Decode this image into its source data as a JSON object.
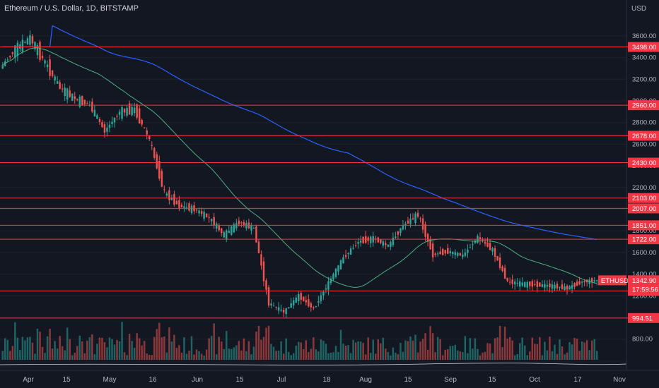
{
  "header": {
    "title": "Ethereum / U.S. Dollar, 1D, BITSTAMP",
    "currency": "USD"
  },
  "colors": {
    "background": "#131722",
    "up": "#26a69a",
    "down": "#ef5350",
    "level": "#f23645",
    "ma_fast": "#4caf80",
    "ma_slow": "#2962ff",
    "text": "#b2b5be"
  },
  "chart_data": {
    "type": "candlestick",
    "symbol": "ETHUSD",
    "y_axis": {
      "min": 600,
      "max": 3700,
      "ticks": [
        "3600.00",
        "3400.00",
        "3200.00",
        "3000.00",
        "2800.00",
        "2600.00",
        "2400.00",
        "2200.00",
        "2000.00",
        "1800.00",
        "1600.00",
        "1400.00",
        "1200.00",
        "1000.00",
        "800.00"
      ],
      "position": "right"
    },
    "x_ticks": [
      "Apr",
      "15",
      "May",
      "16",
      "Jun",
      "15",
      "Jul",
      "18",
      "Aug",
      "15",
      "Sep",
      "15",
      "Oct",
      "17",
      "Nov"
    ],
    "levels": [
      "3498.00",
      "2960.00",
      "2678.00",
      "2430.00",
      "2103.00",
      "2007.00",
      "1851.00",
      "1722.00",
      "1245.08",
      "994.51"
    ],
    "last_price": {
      "label": "ETHUSD",
      "price": "1342.90",
      "countdown": "17:59:56"
    },
    "ohlc_summary": [
      [
        3300,
        3480
      ],
      [
        3480,
        3580
      ],
      [
        3580,
        3350
      ],
      [
        3350,
        3120
      ],
      [
        3120,
        3020
      ],
      [
        3020,
        2960
      ],
      [
        2960,
        2720
      ],
      [
        2720,
        2900
      ],
      [
        2900,
        2920
      ],
      [
        2920,
        2640
      ],
      [
        2640,
        2150
      ],
      [
        2150,
        2030
      ],
      [
        2030,
        2000
      ],
      [
        2000,
        1920
      ],
      [
        1920,
        1760
      ],
      [
        1760,
        1880
      ],
      [
        1880,
        1820
      ],
      [
        1820,
        1130
      ],
      [
        1130,
        1050
      ],
      [
        1050,
        1200
      ],
      [
        1200,
        1080
      ],
      [
        1080,
        1320
      ],
      [
        1320,
        1550
      ],
      [
        1550,
        1700
      ],
      [
        1700,
        1730
      ],
      [
        1730,
        1660
      ],
      [
        1660,
        1850
      ],
      [
        1850,
        1950
      ],
      [
        1950,
        1580
      ],
      [
        1580,
        1610
      ],
      [
        1610,
        1570
      ],
      [
        1570,
        1740
      ],
      [
        1740,
        1620
      ],
      [
        1620,
        1330
      ],
      [
        1330,
        1310
      ],
      [
        1310,
        1300
      ],
      [
        1300,
        1290
      ],
      [
        1290,
        1270
      ],
      [
        1270,
        1330
      ],
      [
        1330,
        1343
      ]
    ],
    "moving_averages": [
      {
        "period": "fast",
        "color": "#4caf80"
      },
      {
        "period": "slow",
        "color": "#2962ff"
      }
    ]
  }
}
